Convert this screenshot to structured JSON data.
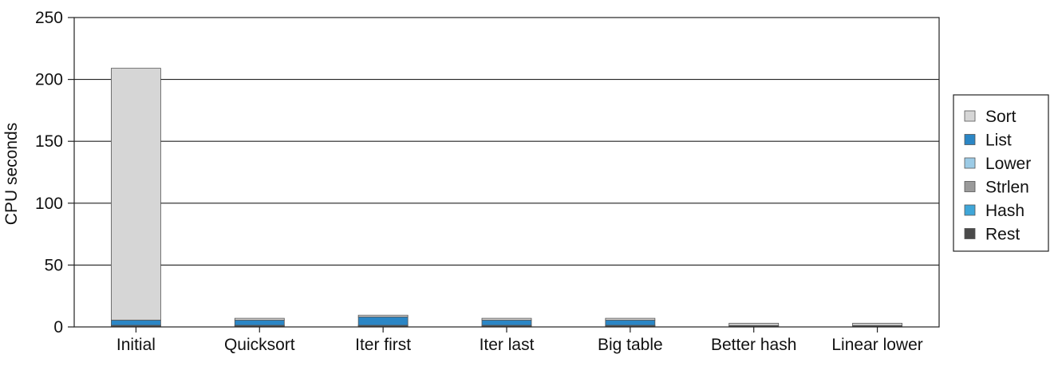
{
  "chart_data": {
    "type": "bar",
    "stacked": true,
    "title": "",
    "xlabel": "",
    "ylabel": "CPU seconds",
    "ylim": [
      0,
      250
    ],
    "yticks": [
      0,
      50,
      100,
      150,
      200,
      250
    ],
    "grid": true,
    "legend_position": "right",
    "categories": [
      "Initial",
      "Quicksort",
      "Iter first",
      "Iter last",
      "Big table",
      "Better hash",
      "Linear lower"
    ],
    "series": [
      {
        "name": "Rest",
        "color": "#4a4a4a",
        "values": [
          0.3,
          0.3,
          0.3,
          0.3,
          0.3,
          0.3,
          0.3
        ]
      },
      {
        "name": "Hash",
        "color": "#3fa6d8",
        "values": [
          0.5,
          0.5,
          0.5,
          0.5,
          0.5,
          0.4,
          0.4
        ]
      },
      {
        "name": "Strlen",
        "color": "#9a9a9a",
        "values": [
          0.3,
          0.3,
          0.3,
          0.3,
          0.3,
          0.3,
          0.3
        ]
      },
      {
        "name": "Lower",
        "color": "#9ccbe6",
        "values": [
          0.2,
          0.2,
          0.2,
          0.2,
          0.2,
          0.2,
          0.2
        ]
      },
      {
        "name": "List",
        "color": "#2b86c5",
        "values": [
          4.2,
          4.2,
          6.8,
          4.2,
          4.2,
          0.0,
          0.0
        ]
      },
      {
        "name": "Sort",
        "color": "#d6d6d6",
        "values": [
          203.5,
          1.5,
          1.4,
          1.5,
          1.5,
          1.8,
          1.8
        ]
      }
    ],
    "legend_order": [
      "Sort",
      "List",
      "Lower",
      "Strlen",
      "Hash",
      "Rest"
    ]
  }
}
